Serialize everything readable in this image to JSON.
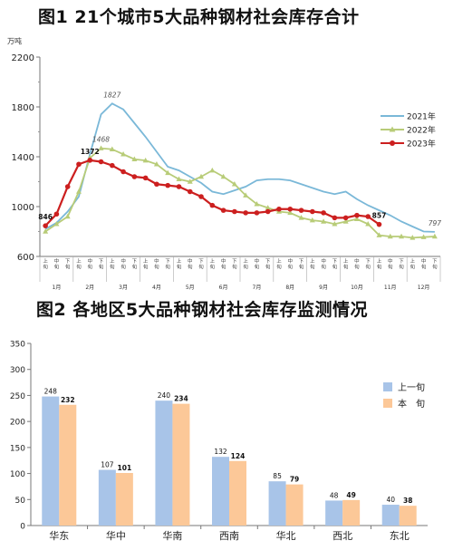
{
  "chart_data": [
    {
      "type": "line",
      "title": "图1 21个城市5大品种钢材社会库存合计",
      "ylabel": "万吨",
      "ylim": [
        600,
        2200
      ],
      "yticks": [
        "600",
        "1000",
        "1400",
        "1800",
        "2200"
      ],
      "y_minor_ticks": [
        800,
        1200,
        1600,
        2000
      ],
      "grid": false,
      "legend_position": "right-center",
      "sub_labels": [
        "上旬",
        "中旬",
        "下旬"
      ],
      "months": [
        "1月",
        "2月",
        "3月",
        "4月",
        "5月",
        "6月",
        "7月",
        "8月",
        "9月",
        "10月",
        "11月",
        "12月"
      ],
      "series": [
        {
          "name": "2021年",
          "color": "#7ab8d8",
          "marker": "none",
          "values": [
            820,
            870,
            960,
            1080,
            1420,
            1740,
            1827,
            1780,
            1670,
            1560,
            1440,
            1320,
            1290,
            1240,
            1190,
            1120,
            1100,
            1130,
            1160,
            1210,
            1220,
            1220,
            1210,
            1180,
            1150,
            1120,
            1100,
            1120,
            1060,
            1010,
            970,
            930,
            880,
            840,
            800,
            797
          ],
          "data_labels": [
            {
              "index": 6,
              "text": "1827"
            },
            {
              "index": 35,
              "text": "797"
            }
          ]
        },
        {
          "name": "2022年",
          "color": "#b8cc78",
          "marker": "triangle",
          "values": [
            800,
            860,
            920,
            1120,
            1390,
            1468,
            1460,
            1420,
            1380,
            1370,
            1340,
            1270,
            1220,
            1200,
            1240,
            1290,
            1240,
            1180,
            1090,
            1020,
            990,
            960,
            950,
            910,
            890,
            880,
            860,
            880,
            900,
            860,
            770,
            760,
            760,
            750,
            755,
            760
          ],
          "data_labels": [
            {
              "index": 5,
              "text": "1468"
            }
          ]
        },
        {
          "name": "2023年",
          "color": "#cc1f1f",
          "marker": "circle",
          "values": [
            846,
            940,
            1160,
            1340,
            1372,
            1360,
            1330,
            1280,
            1240,
            1230,
            1180,
            1170,
            1160,
            1120,
            1080,
            1010,
            970,
            960,
            950,
            950,
            960,
            980,
            980,
            970,
            960,
            950,
            910,
            910,
            930,
            920,
            857
          ],
          "data_labels": [
            {
              "index": 0,
              "text": "846"
            },
            {
              "index": 4,
              "text": "1372"
            },
            {
              "index": 30,
              "text": "857"
            }
          ]
        }
      ]
    },
    {
      "type": "bar",
      "title": "图2 各地区5大品种钢材社会库存监测情况",
      "ylim": [
        0,
        350
      ],
      "yticks": [
        "0",
        "50",
        "100",
        "150",
        "200",
        "250",
        "300",
        "350"
      ],
      "grid": false,
      "legend_position": "right-top",
      "categories": [
        "华东",
        "华中",
        "华南",
        "西南",
        "华北",
        "西北",
        "东北"
      ],
      "series": [
        {
          "name": "上一旬",
          "color": "#a8c4e8",
          "values": [
            248,
            107,
            240,
            132,
            85,
            48,
            40
          ]
        },
        {
          "name": "本　旬",
          "color": "#fcc898",
          "values": [
            232,
            101,
            234,
            124,
            79,
            49,
            38
          ]
        }
      ]
    }
  ]
}
